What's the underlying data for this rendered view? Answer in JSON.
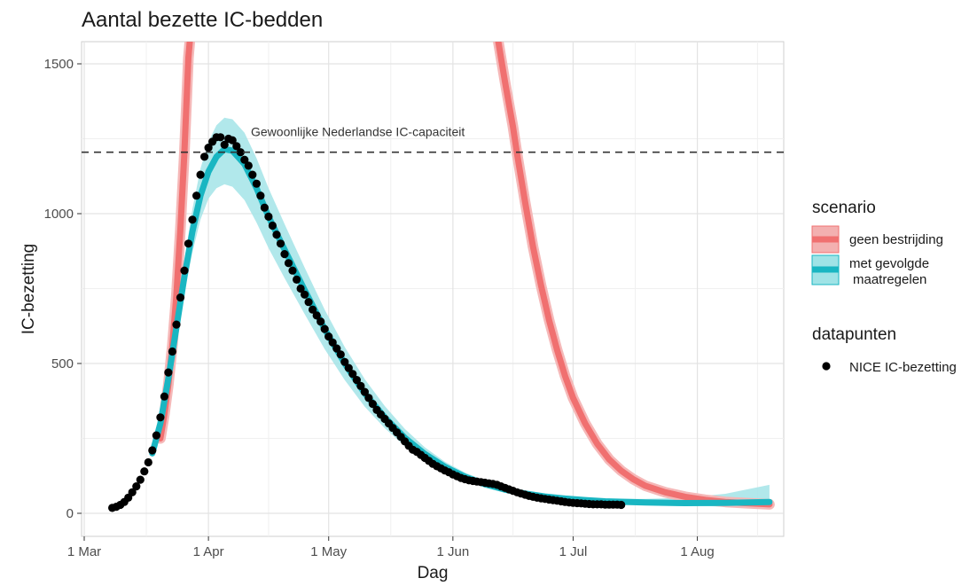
{
  "chart_data": {
    "type": "line",
    "title": "Aantal bezette IC-bedden",
    "xlabel": "Dag",
    "ylabel": "IC-bezetting",
    "x_ticks": [
      {
        "label": "1 Mar",
        "day": 0
      },
      {
        "label": "1 Apr",
        "day": 31
      },
      {
        "label": "1 May",
        "day": 61
      },
      {
        "label": "1 Jun",
        "day": 92
      },
      {
        "label": "1 Jul",
        "day": 122
      },
      {
        "label": "1 Aug",
        "day": 153
      }
    ],
    "y_ticks": [
      "0",
      "500",
      "1000",
      "1500"
    ],
    "ylim": [
      -60,
      1600
    ],
    "xlim": [
      -1,
      175
    ],
    "grid": true,
    "reference_line": {
      "y": 1205,
      "style": "dashed",
      "label": "Gewoonlijke Nederlandse IC-capaciteit"
    },
    "legend": {
      "position": "right",
      "scenario_title": "scenario",
      "datapoints_title": "datapunten",
      "entries": [
        {
          "key": "geen",
          "label_lines": [
            "geen bestrijding"
          ],
          "color": "#f07070",
          "fill": "#f3b0b0"
        },
        {
          "key": "met",
          "label_lines": [
            "met gevolgde",
            "maatregelen"
          ],
          "color": "#19b6c2",
          "fill": "#9fe3e6"
        },
        {
          "key": "nice",
          "label_lines": [
            "NICE IC-bezetting"
          ],
          "color": "#000000"
        }
      ]
    },
    "series": [
      {
        "key": "geen",
        "name": "geen bestrijding",
        "color": "#f07070",
        "band_color": "#f5b8b8",
        "segments": [
          [
            [
              19,
              250
            ],
            [
              20,
              330
            ],
            [
              21,
              430
            ],
            [
              22,
              560
            ],
            [
              23,
              730
            ],
            [
              24,
              950
            ],
            [
              25,
              1205
            ],
            [
              26,
              1520
            ],
            [
              26.5,
              1600
            ]
          ],
          [
            [
              103,
              1600
            ],
            [
              105,
              1440
            ],
            [
              107,
              1290
            ],
            [
              108,
              1200
            ],
            [
              110,
              1040
            ],
            [
              112,
              890
            ],
            [
              114,
              760
            ],
            [
              116,
              645
            ],
            [
              118,
              545
            ],
            [
              120,
              458
            ],
            [
              122,
              385
            ],
            [
              125,
              300
            ],
            [
              128,
              232
            ],
            [
              131,
              180
            ],
            [
              134,
              142
            ],
            [
              137,
              114
            ],
            [
              140,
              92
            ],
            [
              145,
              70
            ],
            [
              150,
              55
            ],
            [
              155,
              45
            ],
            [
              160,
              38
            ],
            [
              165,
              34
            ],
            [
              171,
              30
            ]
          ]
        ]
      },
      {
        "key": "met",
        "name": "met gevolgde maatregelen",
        "color": "#19b6c2",
        "band_color": "#a3e4e8",
        "x": [
          17,
          19,
          21,
          23,
          25,
          27,
          29,
          31,
          33,
          35,
          37,
          40,
          43,
          46,
          50,
          55,
          60,
          65,
          70,
          75,
          80,
          85,
          90,
          95,
          100,
          105,
          110,
          115,
          120,
          125,
          130,
          140,
          150,
          160,
          171
        ],
        "y": [
          200,
          300,
          450,
          620,
          790,
          940,
          1060,
          1140,
          1190,
          1215,
          1210,
          1165,
          1085,
          990,
          880,
          745,
          615,
          500,
          400,
          320,
          252,
          198,
          155,
          122,
          97,
          79,
          66,
          56,
          49,
          44,
          40,
          36,
          34,
          35,
          38
        ],
        "lower": [
          190,
          285,
          425,
          580,
          735,
          870,
          980,
          1050,
          1085,
          1098,
          1090,
          1045,
          970,
          885,
          785,
          665,
          548,
          445,
          356,
          284,
          224,
          176,
          138,
          108,
          86,
          70,
          58,
          49,
          43,
          38,
          34,
          30,
          27,
          22,
          18
        ],
        "upper": [
          210,
          315,
          475,
          660,
          845,
          1015,
          1150,
          1240,
          1295,
          1320,
          1315,
          1270,
          1185,
          1085,
          965,
          820,
          680,
          555,
          448,
          358,
          282,
          220,
          172,
          136,
          109,
          89,
          75,
          64,
          56,
          51,
          48,
          48,
          52,
          65,
          95
        ]
      },
      {
        "key": "nice",
        "name": "NICE IC-bezetting",
        "type": "scatter",
        "color": "#000000",
        "x": [
          7,
          8,
          9,
          10,
          11,
          12,
          13,
          14,
          15,
          16,
          17,
          18,
          19,
          20,
          21,
          22,
          23,
          24,
          25,
          26,
          27,
          28,
          29,
          30,
          31,
          32,
          33,
          34,
          35,
          36,
          37,
          38,
          39,
          40,
          41,
          42,
          43,
          44,
          45,
          46,
          47,
          48,
          49,
          50,
          51,
          52,
          53,
          54,
          55,
          56,
          57,
          58,
          59,
          60,
          61,
          62,
          63,
          64,
          65,
          66,
          67,
          68,
          69,
          70,
          71,
          72,
          73,
          74,
          75,
          76,
          77,
          78,
          79,
          80,
          81,
          82,
          83,
          84,
          85,
          86,
          87,
          88,
          89,
          90,
          91,
          92,
          93,
          94,
          95,
          96,
          97,
          98,
          99,
          100,
          101,
          102,
          103,
          104,
          105,
          106,
          107,
          108,
          109,
          110,
          111,
          112,
          113,
          114,
          115,
          116,
          117,
          118,
          119,
          120,
          121,
          122,
          123,
          124,
          125,
          126,
          127,
          128,
          129,
          130,
          131,
          132,
          133,
          134
        ],
        "y": [
          18,
          22,
          28,
          38,
          52,
          70,
          90,
          112,
          140,
          170,
          210,
          260,
          320,
          390,
          470,
          540,
          630,
          720,
          810,
          900,
          980,
          1060,
          1130,
          1190,
          1220,
          1240,
          1255,
          1255,
          1230,
          1250,
          1245,
          1225,
          1205,
          1180,
          1160,
          1130,
          1100,
          1060,
          1020,
          990,
          960,
          930,
          900,
          865,
          835,
          810,
          780,
          750,
          730,
          705,
          680,
          660,
          640,
          615,
          590,
          570,
          550,
          530,
          505,
          485,
          465,
          445,
          425,
          405,
          385,
          365,
          345,
          330,
          315,
          300,
          285,
          270,
          255,
          240,
          225,
          212,
          205,
          195,
          185,
          175,
          165,
          157,
          150,
          143,
          137,
          130,
          124,
          118,
          114,
          110,
          108,
          106,
          104,
          102,
          100,
          98,
          95,
          90,
          85,
          80,
          75,
          70,
          66,
          62,
          58,
          55,
          52,
          50,
          48,
          46,
          44,
          42,
          40,
          38,
          36,
          35,
          34,
          33,
          32,
          31,
          30,
          30,
          30,
          29,
          29,
          29,
          29,
          28
        ]
      }
    ]
  }
}
